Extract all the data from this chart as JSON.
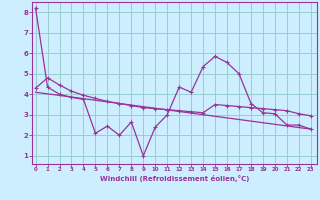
{
  "xlabel": "Windchill (Refroidissement éolien,°C)",
  "bg_color": "#cceeff",
  "line_color": "#993399",
  "grid_color": "#99cccc",
  "x_ticks": [
    0,
    1,
    2,
    3,
    4,
    5,
    6,
    7,
    8,
    9,
    10,
    11,
    12,
    13,
    14,
    15,
    16,
    17,
    18,
    19,
    20,
    21,
    22,
    23
  ],
  "y_ticks": [
    1,
    2,
    3,
    4,
    5,
    6,
    7,
    8
  ],
  "ylim": [
    0.6,
    8.5
  ],
  "xlim": [
    -0.3,
    23.5
  ],
  "series1_x": [
    0,
    1,
    2,
    3,
    4,
    5,
    6,
    7,
    8,
    9,
    10,
    11,
    12,
    13,
    14,
    15,
    16,
    17,
    18,
    19,
    20,
    21,
    22,
    23
  ],
  "series1_y": [
    8.2,
    4.35,
    4.0,
    3.85,
    3.75,
    2.1,
    2.45,
    2.0,
    2.65,
    1.0,
    2.4,
    3.0,
    4.35,
    4.1,
    5.35,
    5.85,
    5.55,
    5.0,
    3.55,
    3.1,
    3.05,
    2.5,
    2.5,
    2.3
  ],
  "series2_x": [
    0,
    1,
    2,
    3,
    4,
    5,
    6,
    7,
    8,
    9,
    10,
    11,
    12,
    13,
    14,
    15,
    16,
    17,
    18,
    19,
    20,
    21,
    22,
    23
  ],
  "series2_y": [
    4.3,
    4.8,
    4.45,
    4.15,
    3.95,
    3.8,
    3.65,
    3.55,
    3.45,
    3.35,
    3.3,
    3.25,
    3.2,
    3.15,
    3.1,
    3.5,
    3.45,
    3.4,
    3.35,
    3.3,
    3.25,
    3.2,
    3.05,
    2.95
  ],
  "series3_x": [
    0,
    23
  ],
  "series3_y": [
    4.1,
    2.3
  ]
}
